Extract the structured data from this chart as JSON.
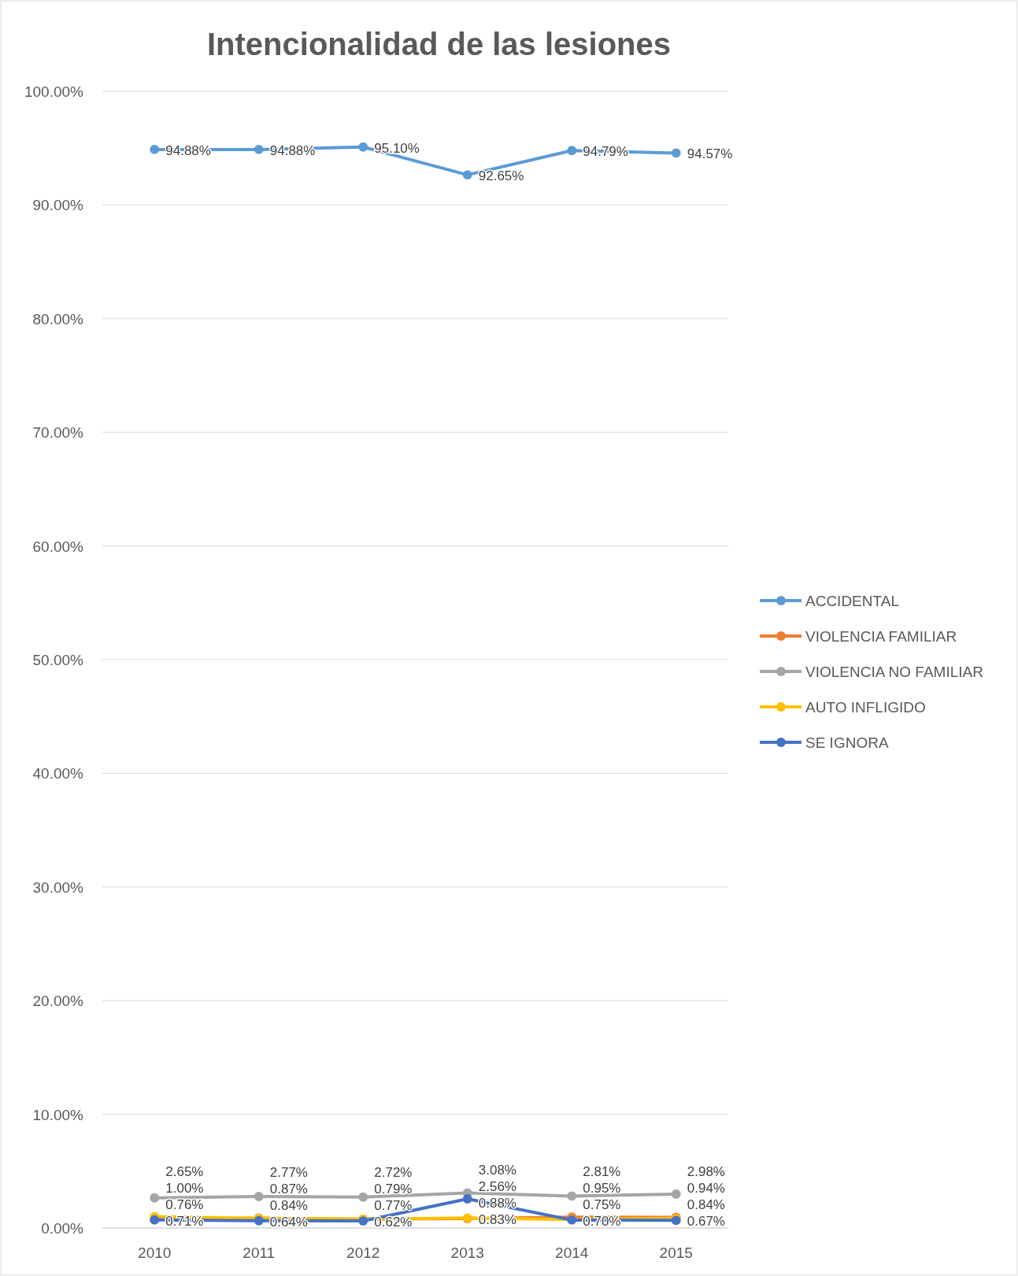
{
  "chart_data": {
    "type": "line",
    "title": "Intencionalidad de las lesiones",
    "categories": [
      "2010",
      "2011",
      "2012",
      "2013",
      "2014",
      "2015"
    ],
    "series": [
      {
        "name": "ACCIDENTAL",
        "color": "#5b9bd5",
        "values": [
          94.88,
          94.88,
          95.1,
          92.65,
          94.79,
          94.57
        ],
        "value_labels": [
          "94.88%",
          "94.88%",
          "95.10%",
          "92.65%",
          "94.79%",
          "94.57%"
        ]
      },
      {
        "name": "VIOLENCIA FAMILIAR",
        "color": "#ed7d31",
        "values": [
          0.76,
          0.87,
          0.77,
          0.83,
          0.95,
          0.94
        ],
        "value_labels": [
          "0.76%",
          "0.87%",
          "0.77%",
          "0.83%",
          "0.95%",
          "0.94%"
        ]
      },
      {
        "name": "VIOLENCIA NO FAMILIAR",
        "color": "#a5a5a5",
        "values": [
          2.65,
          2.77,
          2.72,
          3.08,
          2.81,
          2.98
        ],
        "value_labels": [
          "2.65%",
          "2.77%",
          "2.72%",
          "3.08%",
          "2.81%",
          "2.98%"
        ]
      },
      {
        "name": "AUTO INFLIGIDO",
        "color": "#ffc000",
        "values": [
          1.0,
          0.84,
          0.79,
          0.88,
          0.75,
          0.84
        ],
        "value_labels": [
          "1.00%",
          "0.84%",
          "0.79%",
          "0.88%",
          "0.75%",
          "0.84%"
        ]
      },
      {
        "name": "SE IGNORA",
        "color": "#4472c4",
        "values": [
          0.71,
          0.64,
          0.62,
          2.56,
          0.7,
          0.67
        ],
        "value_labels": [
          "0.71%",
          "0.64%",
          "0.62%",
          "2.56%",
          "0.70%",
          "0.67%"
        ]
      }
    ],
    "ylim": [
      0,
      100
    ],
    "yticks": [
      {
        "value": 0,
        "label": "0.00%"
      },
      {
        "value": 10,
        "label": "10.00%"
      },
      {
        "value": 20,
        "label": "20.00%"
      },
      {
        "value": 30,
        "label": "30.00%"
      },
      {
        "value": 40,
        "label": "40.00%"
      },
      {
        "value": 50,
        "label": "50.00%"
      },
      {
        "value": 60,
        "label": "60.00%"
      },
      {
        "value": 70,
        "label": "70.00%"
      },
      {
        "value": 80,
        "label": "80.00%"
      },
      {
        "value": 90,
        "label": "90.00%"
      },
      {
        "value": 100,
        "label": "100.00%"
      }
    ],
    "grid": "y",
    "legend": "right",
    "marker": "circle",
    "line_style": "solid"
  }
}
